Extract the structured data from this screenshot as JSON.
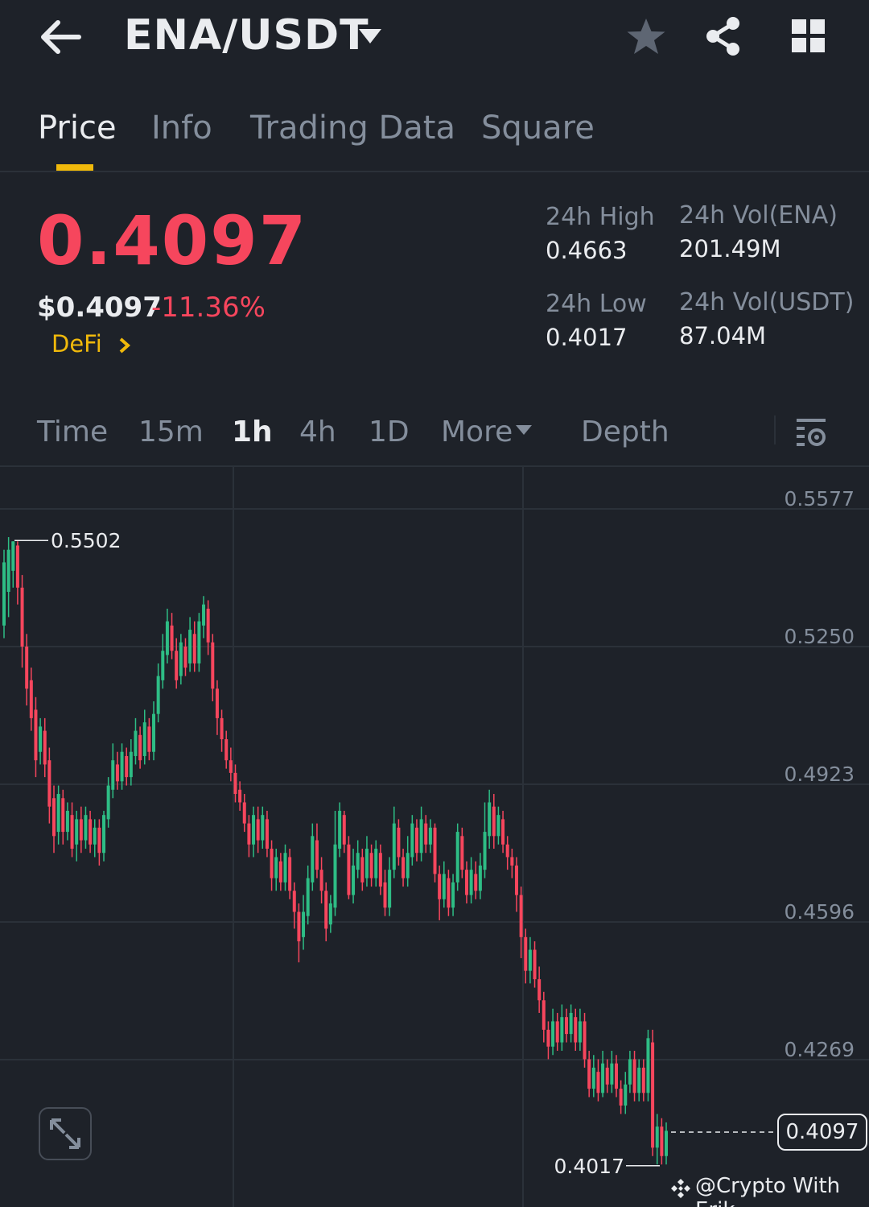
{
  "header": {
    "pair": "ENA/USDT"
  },
  "tabs": [
    "Price",
    "Info",
    "Trading Data",
    "Square"
  ],
  "ticker": {
    "last_price": "0.4097",
    "usd_price": "$0.4097",
    "change_pct": "-11.36%",
    "category": "DeFi",
    "high_label": "24h High",
    "high_value": "0.4663",
    "low_label": "24h Low",
    "low_value": "0.4017",
    "vol_base_label": "24h Vol(ENA)",
    "vol_base_value": "201.49M",
    "vol_quote_label": "24h Vol(USDT)",
    "vol_quote_value": "87.04M"
  },
  "intervals": {
    "time": "Time",
    "m15": "15m",
    "h1": "1h",
    "h4": "4h",
    "d1": "1D",
    "more": "More",
    "depth": "Depth"
  },
  "colors": {
    "up": "#2ebd85",
    "down": "#f6465d",
    "accent": "#f0b90b",
    "background": "#1e2229"
  },
  "chart_data": {
    "type": "candlestick",
    "interval": "1h",
    "y_ticks": [
      "0.5577",
      "0.5250",
      "0.4923",
      "0.4596",
      "0.4269"
    ],
    "ylim": [
      0.398,
      0.566
    ],
    "max_label": "0.5502",
    "min_label": "0.4017",
    "current_price_label": "0.4097",
    "watermark_text": "@Crypto With Erik",
    "candles": [
      [
        0.53,
        0.545,
        0.527,
        0.548
      ],
      [
        0.538,
        0.548,
        0.532,
        0.551
      ],
      [
        0.543,
        0.55,
        0.539,
        0.55
      ],
      [
        0.549,
        0.539,
        0.535,
        0.55
      ],
      [
        0.539,
        0.525,
        0.52,
        0.542
      ],
      [
        0.525,
        0.515,
        0.511,
        0.528
      ],
      [
        0.517,
        0.508,
        0.505,
        0.52
      ],
      [
        0.51,
        0.498,
        0.494,
        0.513
      ],
      [
        0.5,
        0.506,
        0.497,
        0.508
      ],
      [
        0.505,
        0.497,
        0.494,
        0.508
      ],
      [
        0.498,
        0.487,
        0.483,
        0.501
      ],
      [
        0.489,
        0.48,
        0.476,
        0.492
      ],
      [
        0.481,
        0.49,
        0.478,
        0.492
      ],
      [
        0.489,
        0.481,
        0.478,
        0.491
      ],
      [
        0.481,
        0.486,
        0.479,
        0.488
      ],
      [
        0.485,
        0.477,
        0.475,
        0.488
      ],
      [
        0.478,
        0.484,
        0.474,
        0.486
      ],
      [
        0.484,
        0.479,
        0.476,
        0.487
      ],
      [
        0.479,
        0.485,
        0.477,
        0.487
      ],
      [
        0.484,
        0.478,
        0.476,
        0.486
      ],
      [
        0.478,
        0.482,
        0.475,
        0.484
      ],
      [
        0.482,
        0.476,
        0.473,
        0.484
      ],
      [
        0.476,
        0.485,
        0.474,
        0.486
      ],
      [
        0.484,
        0.492,
        0.482,
        0.494
      ],
      [
        0.491,
        0.498,
        0.489,
        0.502
      ],
      [
        0.497,
        0.493,
        0.491,
        0.5
      ],
      [
        0.493,
        0.5,
        0.491,
        0.502
      ],
      [
        0.499,
        0.494,
        0.492,
        0.501
      ],
      [
        0.494,
        0.5,
        0.492,
        0.503
      ],
      [
        0.499,
        0.505,
        0.497,
        0.508
      ],
      [
        0.504,
        0.498,
        0.496,
        0.506
      ],
      [
        0.499,
        0.507,
        0.497,
        0.51
      ],
      [
        0.506,
        0.5,
        0.498,
        0.508
      ],
      [
        0.5,
        0.509,
        0.498,
        0.512
      ],
      [
        0.509,
        0.518,
        0.507,
        0.521
      ],
      [
        0.517,
        0.524,
        0.515,
        0.528
      ],
      [
        0.523,
        0.531,
        0.521,
        0.534
      ],
      [
        0.53,
        0.524,
        0.522,
        0.533
      ],
      [
        0.524,
        0.517,
        0.515,
        0.527
      ],
      [
        0.518,
        0.526,
        0.516,
        0.528
      ],
      [
        0.525,
        0.52,
        0.518,
        0.527
      ],
      [
        0.521,
        0.529,
        0.519,
        0.532
      ],
      [
        0.528,
        0.521,
        0.519,
        0.531
      ],
      [
        0.521,
        0.531,
        0.519,
        0.533
      ],
      [
        0.53,
        0.535,
        0.527,
        0.537
      ],
      [
        0.534,
        0.526,
        0.523,
        0.536
      ],
      [
        0.526,
        0.515,
        0.512,
        0.528
      ],
      [
        0.515,
        0.508,
        0.504,
        0.517
      ],
      [
        0.508,
        0.503,
        0.5,
        0.51
      ],
      [
        0.503,
        0.498,
        0.496,
        0.505
      ],
      [
        0.498,
        0.495,
        0.493,
        0.501
      ],
      [
        0.495,
        0.49,
        0.488,
        0.497
      ],
      [
        0.491,
        0.488,
        0.486,
        0.493
      ],
      [
        0.488,
        0.483,
        0.481,
        0.49
      ],
      [
        0.483,
        0.478,
        0.475,
        0.485
      ],
      [
        0.478,
        0.485,
        0.475,
        0.487
      ],
      [
        0.484,
        0.479,
        0.476,
        0.487
      ],
      [
        0.479,
        0.485,
        0.477,
        0.487
      ],
      [
        0.484,
        0.477,
        0.475,
        0.486
      ],
      [
        0.477,
        0.47,
        0.467,
        0.479
      ],
      [
        0.47,
        0.475,
        0.467,
        0.477
      ],
      [
        0.474,
        0.469,
        0.467,
        0.476
      ],
      [
        0.469,
        0.476,
        0.467,
        0.478
      ],
      [
        0.475,
        0.467,
        0.465,
        0.477
      ],
      [
        0.467,
        0.462,
        0.458,
        0.469
      ],
      [
        0.462,
        0.455,
        0.45,
        0.464
      ],
      [
        0.456,
        0.462,
        0.453,
        0.466
      ],
      [
        0.461,
        0.47,
        0.459,
        0.473
      ],
      [
        0.469,
        0.48,
        0.467,
        0.483
      ],
      [
        0.479,
        0.472,
        0.47,
        0.483
      ],
      [
        0.472,
        0.467,
        0.464,
        0.475
      ],
      [
        0.467,
        0.458,
        0.455,
        0.469
      ],
      [
        0.459,
        0.464,
        0.457,
        0.466
      ],
      [
        0.463,
        0.478,
        0.461,
        0.486
      ],
      [
        0.477,
        0.486,
        0.475,
        0.488
      ],
      [
        0.485,
        0.478,
        0.476,
        0.486
      ],
      [
        0.478,
        0.466,
        0.465,
        0.48
      ],
      [
        0.466,
        0.473,
        0.464,
        0.477
      ],
      [
        0.472,
        0.476,
        0.47,
        0.479
      ],
      [
        0.475,
        0.469,
        0.467,
        0.477
      ],
      [
        0.47,
        0.477,
        0.468,
        0.48
      ],
      [
        0.476,
        0.47,
        0.468,
        0.478
      ],
      [
        0.47,
        0.477,
        0.468,
        0.479
      ],
      [
        0.476,
        0.468,
        0.466,
        0.478
      ],
      [
        0.469,
        0.463,
        0.461,
        0.472
      ],
      [
        0.463,
        0.472,
        0.461,
        0.475
      ],
      [
        0.472,
        0.483,
        0.47,
        0.487
      ],
      [
        0.482,
        0.475,
        0.473,
        0.484
      ],
      [
        0.475,
        0.47,
        0.468,
        0.477
      ],
      [
        0.47,
        0.476,
        0.468,
        0.48
      ],
      [
        0.475,
        0.483,
        0.473,
        0.485
      ],
      [
        0.482,
        0.476,
        0.474,
        0.484
      ],
      [
        0.476,
        0.484,
        0.474,
        0.487
      ],
      [
        0.483,
        0.478,
        0.476,
        0.485
      ],
      [
        0.478,
        0.482,
        0.476,
        0.484
      ],
      [
        0.482,
        0.471,
        0.469,
        0.483
      ],
      [
        0.471,
        0.465,
        0.46,
        0.473
      ],
      [
        0.465,
        0.471,
        0.463,
        0.474
      ],
      [
        0.47,
        0.463,
        0.461,
        0.472
      ],
      [
        0.463,
        0.469,
        0.461,
        0.471
      ],
      [
        0.469,
        0.481,
        0.467,
        0.483
      ],
      [
        0.48,
        0.472,
        0.47,
        0.482
      ],
      [
        0.472,
        0.466,
        0.464,
        0.474
      ],
      [
        0.466,
        0.472,
        0.464,
        0.475
      ],
      [
        0.471,
        0.467,
        0.465,
        0.474
      ],
      [
        0.467,
        0.473,
        0.465,
        0.476
      ],
      [
        0.472,
        0.481,
        0.47,
        0.488
      ],
      [
        0.48,
        0.488,
        0.477,
        0.491
      ],
      [
        0.487,
        0.48,
        0.477,
        0.49
      ],
      [
        0.48,
        0.485,
        0.478,
        0.487
      ],
      [
        0.484,
        0.478,
        0.476,
        0.486
      ],
      [
        0.478,
        0.475,
        0.472,
        0.48
      ],
      [
        0.475,
        0.473,
        0.47,
        0.477
      ],
      [
        0.473,
        0.466,
        0.462,
        0.475
      ],
      [
        0.466,
        0.456,
        0.451,
        0.468
      ],
      [
        0.456,
        0.448,
        0.445,
        0.458
      ],
      [
        0.448,
        0.453,
        0.445,
        0.456
      ],
      [
        0.453,
        0.446,
        0.444,
        0.455
      ],
      [
        0.446,
        0.441,
        0.438,
        0.449
      ],
      [
        0.441,
        0.434,
        0.431,
        0.443
      ],
      [
        0.434,
        0.43,
        0.427,
        0.436
      ],
      [
        0.43,
        0.436,
        0.428,
        0.439
      ],
      [
        0.436,
        0.431,
        0.429,
        0.438
      ],
      [
        0.431,
        0.437,
        0.429,
        0.44
      ],
      [
        0.437,
        0.433,
        0.431,
        0.439
      ],
      [
        0.433,
        0.438,
        0.431,
        0.44
      ],
      [
        0.437,
        0.431,
        0.429,
        0.439
      ],
      [
        0.431,
        0.436,
        0.429,
        0.439
      ],
      [
        0.436,
        0.427,
        0.425,
        0.438
      ],
      [
        0.427,
        0.42,
        0.418,
        0.429
      ],
      [
        0.42,
        0.425,
        0.418,
        0.428
      ],
      [
        0.424,
        0.419,
        0.417,
        0.427
      ],
      [
        0.419,
        0.426,
        0.418,
        0.429
      ],
      [
        0.425,
        0.421,
        0.419,
        0.427
      ],
      [
        0.421,
        0.426,
        0.419,
        0.429
      ],
      [
        0.426,
        0.42,
        0.418,
        0.428
      ],
      [
        0.42,
        0.416,
        0.414,
        0.422
      ],
      [
        0.416,
        0.421,
        0.414,
        0.424
      ],
      [
        0.421,
        0.427,
        0.419,
        0.429
      ],
      [
        0.427,
        0.419,
        0.417,
        0.429
      ],
      [
        0.419,
        0.425,
        0.417,
        0.427
      ],
      [
        0.425,
        0.419,
        0.417,
        0.427
      ],
      [
        0.419,
        0.432,
        0.417,
        0.434
      ],
      [
        0.431,
        0.406,
        0.404,
        0.434
      ],
      [
        0.406,
        0.411,
        0.402,
        0.414
      ],
      [
        0.411,
        0.404,
        0.402,
        0.413
      ],
      [
        0.404,
        0.41,
        0.402,
        0.412
      ]
    ]
  }
}
